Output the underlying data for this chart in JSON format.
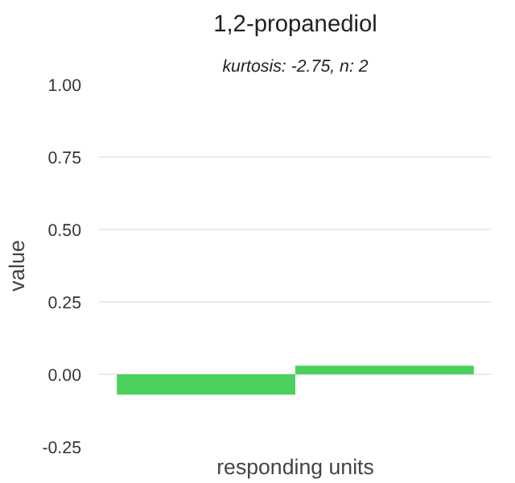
{
  "chart_data": {
    "type": "bar",
    "title": "1,2-propanediol",
    "subtitle": "kurtosis: -2.75, n: 2",
    "xlabel": "responding units",
    "ylabel": "value",
    "categories": [
      null,
      null
    ],
    "values": [
      -0.07,
      0.03
    ],
    "color": "#4cd05c",
    "yticks": [
      {
        "value": -0.25,
        "label": "-0.25"
      },
      {
        "value": 0,
        "label": "0.00"
      },
      {
        "value": 0.25,
        "label": "0.25"
      },
      {
        "value": 0.5,
        "label": "0.50"
      },
      {
        "value": 0.75,
        "label": "0.75"
      },
      {
        "value": 1,
        "label": "1.00"
      }
    ],
    "ylim": [
      -0.25,
      1
    ],
    "grid": "y"
  }
}
